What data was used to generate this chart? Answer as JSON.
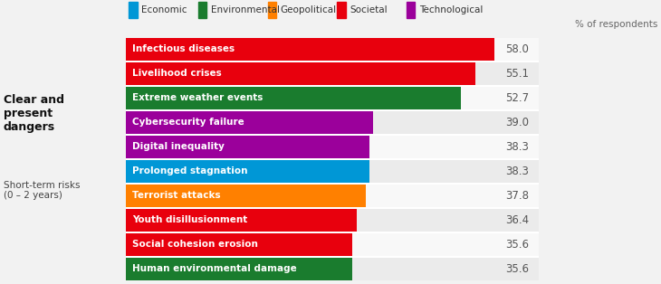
{
  "categories": [
    "Infectious diseases",
    "Livelihood crises",
    "Extreme weather events",
    "Cybersecurity failure",
    "Digital inequality",
    "Prolonged stagnation",
    "Terrorist attacks",
    "Youth disillusionment",
    "Social cohesion erosion",
    "Human environmental damage"
  ],
  "values": [
    58.0,
    55.1,
    52.7,
    39.0,
    38.3,
    38.3,
    37.8,
    36.4,
    35.6,
    35.6
  ],
  "bar_colors": [
    "#e8000d",
    "#e8000d",
    "#1a7c2e",
    "#9b009b",
    "#9b009b",
    "#0097d6",
    "#ff8000",
    "#e8000d",
    "#e8000d",
    "#1a7c2e"
  ],
  "legend_items": [
    {
      "label": "Economic",
      "color": "#0097d6"
    },
    {
      "label": "Environmental",
      "color": "#1a7c2e"
    },
    {
      "label": "Geopolitical",
      "color": "#ff8000"
    },
    {
      "label": "Societal",
      "color": "#e8000d"
    },
    {
      "label": "Technological",
      "color": "#9b009b"
    }
  ],
  "xlim_bar": 65,
  "xlim_total": 75,
  "bar_label_color": "#ffffff",
  "bar_label_fontsize": 7.5,
  "value_label_fontsize": 8.5,
  "value_label_color": "#555555",
  "left_title_bold": "Clear and\npresent\ndangers",
  "left_subtitle": "Short-term risks\n(0 – 2 years)",
  "top_right_label": "% of respondents",
  "background_color": "#f2f2f2",
  "row_color_odd": "#ebebeb",
  "row_color_even": "#f8f8f8",
  "row_separator_color": "#ffffff"
}
